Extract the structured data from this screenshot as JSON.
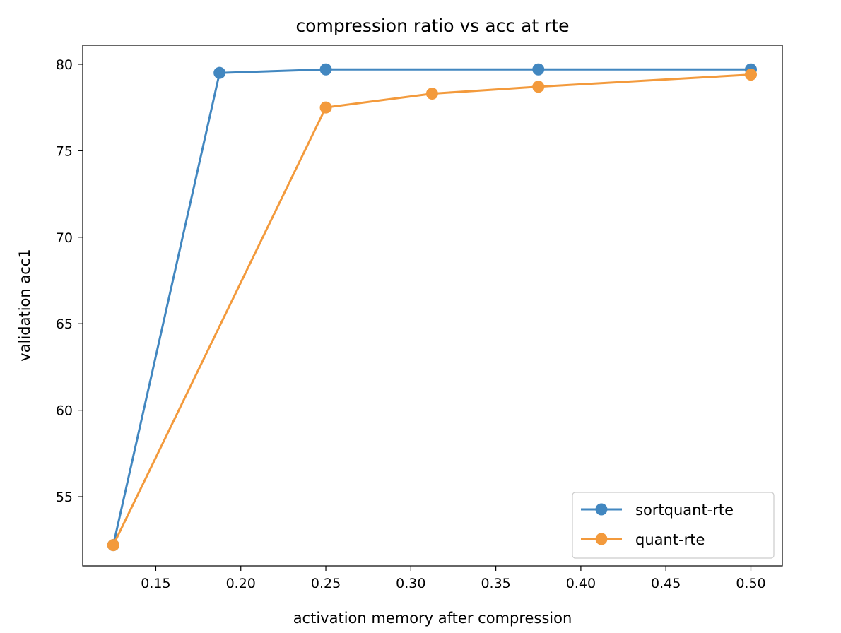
{
  "chart_data": {
    "type": "line",
    "title": "compression ratio vs acc at rte",
    "xlabel": "activation memory after compression",
    "ylabel": "validation acc1",
    "xlim": [
      0.107,
      1.0
    ],
    "xlim_max": 0.5185,
    "ylim": [
      51.0,
      81.1
    ],
    "x_ticks": [
      0.15,
      0.2,
      0.25,
      0.3,
      0.35,
      0.4,
      0.45,
      0.5
    ],
    "x_tick_labels": [
      "0.15",
      "0.20",
      "0.25",
      "0.30",
      "0.35",
      "0.40",
      "0.45",
      "0.50"
    ],
    "y_ticks": [
      55,
      60,
      65,
      70,
      75,
      80
    ],
    "y_tick_labels": [
      "55",
      "60",
      "65",
      "70",
      "75",
      "80"
    ],
    "grid": false,
    "legend_position": "bottom-right",
    "series": [
      {
        "name": "sortquant-rte",
        "color": "#4287c0",
        "x": [
          0.125,
          0.1875,
          0.25,
          0.375,
          0.5
        ],
        "y": [
          52.2,
          79.5,
          79.7,
          79.7,
          79.7
        ]
      },
      {
        "name": "quant-rte",
        "color": "#f39a3c",
        "x": [
          0.125,
          0.25,
          0.3125,
          0.375,
          0.5
        ],
        "y": [
          52.2,
          77.5,
          78.3,
          78.7,
          79.4
        ]
      }
    ]
  }
}
